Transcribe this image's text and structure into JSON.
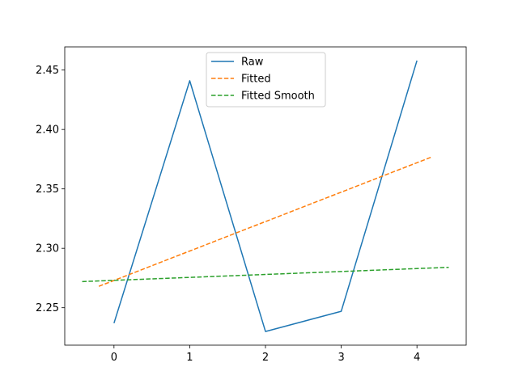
{
  "chart_data": {
    "type": "line",
    "title": "",
    "xlabel": "",
    "ylabel": "",
    "xlim": [
      -0.65,
      4.65
    ],
    "ylim": [
      2.2185,
      2.4695
    ],
    "grid": false,
    "legend_position": "upper-center",
    "x_ticks": [
      0,
      1,
      2,
      3,
      4
    ],
    "x_tick_labels": [
      "0",
      "1",
      "2",
      "3",
      "4"
    ],
    "y_ticks": [
      2.25,
      2.3,
      2.35,
      2.4,
      2.45
    ],
    "y_tick_labels": [
      "2.25",
      "2.30",
      "2.35",
      "2.40",
      "2.45"
    ],
    "series": [
      {
        "name": "Raw",
        "style": "solid",
        "color": "#1f77b4",
        "x": [
          0,
          1,
          2,
          3,
          4
        ],
        "y": [
          2.237,
          2.441,
          2.23,
          2.247,
          2.458
        ]
      },
      {
        "name": "Fitted",
        "style": "dashed",
        "color": "#ff7f0e",
        "x": [
          -0.2,
          4.2
        ],
        "y": [
          2.268,
          2.377
        ]
      },
      {
        "name": "Fitted Smooth",
        "style": "dashed",
        "color": "#2ca02c",
        "x": [
          -0.42,
          4.42
        ],
        "y": [
          2.272,
          2.284
        ]
      }
    ]
  }
}
